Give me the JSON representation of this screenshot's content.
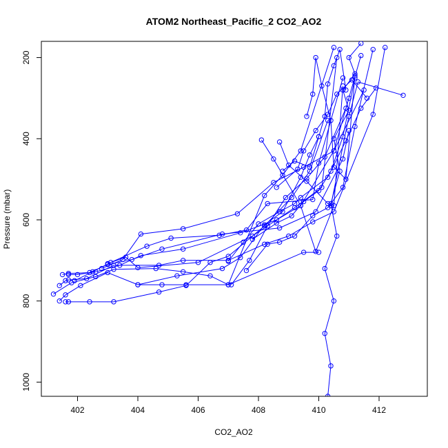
{
  "chart_data": {
    "type": "line",
    "title": "ATOM2 Northeast_Pacific_2 CO2_AO2",
    "xlabel": "CO2_AO2",
    "ylabel": "Pressure (mbar)",
    "xlim": [
      400.8,
      413.6
    ],
    "ylim": [
      1035,
      160
    ],
    "y_inverted": true,
    "xticks": [
      402,
      404,
      406,
      408,
      410,
      412
    ],
    "yticks": [
      200,
      400,
      600,
      800,
      1000
    ],
    "grid": false,
    "legend": "none",
    "line_color": "#0000ff",
    "marker": "open-circle",
    "series": [
      {
        "x": [
          410.3,
          410.4,
          410.2,
          410.5,
          410.2,
          410.6,
          410.4,
          410.7,
          410.5,
          411.0,
          410.8,
          411.2,
          411.0,
          411.4
        ],
        "y": [
          1035,
          960,
          880,
          800,
          720,
          640,
          560,
          480,
          400,
          330,
          280,
          240,
          200,
          165
        ]
      },
      {
        "x": [
          401.2,
          401.8,
          402.6,
          403.2,
          404.6,
          405.5,
          406.4,
          407.0,
          409.5,
          410.0
        ],
        "y": [
          783,
          755,
          740,
          722,
          720,
          728,
          738,
          760,
          680,
          680
        ]
      },
      {
        "x": [
          401.4,
          401.6,
          401.7,
          402.3,
          403.2,
          404.7,
          405.5,
          407.0,
          408.2,
          409.0,
          409.8,
          410.5,
          411.8,
          412.2
        ],
        "y": [
          762,
          750,
          748,
          745,
          712,
          712,
          700,
          700,
          660,
          640,
          605,
          580,
          340,
          175
        ]
      },
      {
        "x": [
          401.7,
          402.0,
          402.6,
          403.4,
          404.1,
          405.5,
          407.4,
          408.6,
          409.4,
          410.5,
          411.5
        ],
        "y": [
          735,
          735,
          728,
          712,
          688,
          672,
          632,
          600,
          565,
          430,
          280
        ]
      },
      {
        "x": [
          401.5,
          401.7,
          402.4,
          403.0,
          403.8,
          404.8,
          406.8,
          408.7,
          409.9,
          410.8,
          411.0
        ],
        "y": [
          735,
          732,
          730,
          710,
          698,
          672,
          635,
          620,
          580,
          450,
          380
        ]
      },
      {
        "x": [
          401.9,
          402.5,
          403.1,
          404.3,
          405.1,
          406.7,
          407.6,
          408.3,
          409.8,
          410.0,
          410.8
        ],
        "y": [
          750,
          728,
          705,
          665,
          645,
          638,
          625,
          560,
          550,
          460,
          250
        ]
      },
      {
        "x": [
          402.8,
          403.5,
          404.1,
          405.5,
          407.3,
          408.5,
          409.5,
          410.5,
          411.0
        ],
        "y": [
          720,
          698,
          635,
          622,
          585,
          508,
          470,
          430,
          300
        ]
      },
      {
        "x": [
          403.0,
          403.6,
          404.0,
          406.0,
          407.8,
          409.2,
          410.1,
          410.6
        ],
        "y": [
          708,
          692,
          718,
          705,
          640,
          570,
          520,
          200
        ]
      },
      {
        "x": [
          401.6,
          401.7,
          402.4,
          403.2,
          404.7,
          405.6,
          406.4,
          407.0,
          408.2,
          409.1,
          409.7,
          410.3
        ],
        "y": [
          802,
          802,
          802,
          802,
          778,
          762,
          705,
          690,
          615,
          545,
          480,
          355
        ]
      },
      {
        "x": [
          401.4,
          401.6,
          402.1,
          403.0,
          404.0,
          404.8,
          405.6,
          407.0,
          408.2,
          408.8,
          409.4,
          410.5
        ],
        "y": [
          800,
          785,
          762,
          730,
          760,
          760,
          760,
          760,
          540,
          490,
          430,
          175
        ]
      },
      {
        "x": [
          404.0,
          405.3,
          406.8,
          407.4,
          408.2,
          408.8,
          409.4,
          409.7,
          410.0
        ],
        "y": [
          760,
          738,
          720,
          693,
          612,
          580,
          495,
          440,
          395
        ]
      },
      {
        "x": [
          407.1,
          407.7,
          408.3,
          408.9,
          409.6,
          410.2,
          410.9,
          411.4
        ],
        "y": [
          760,
          700,
          615,
          545,
          498,
          445,
          325,
          195
        ]
      },
      {
        "x": [
          407.0,
          407.5,
          408.0,
          408.7,
          409.2,
          409.4,
          410.3,
          410.9,
          411.4,
          411.9
        ],
        "y": [
          702,
          655,
          610,
          580,
          560,
          545,
          495,
          405,
          325,
          275
        ]
      },
      {
        "x": [
          407.6,
          408.3,
          408.7,
          409.2,
          409.8,
          410.3,
          410.8,
          411.2,
          411.8
        ],
        "y": [
          725,
          660,
          655,
          640,
          590,
          570,
          520,
          370,
          180
        ]
      },
      {
        "x": [
          407.8,
          408.6,
          409.1,
          409.5,
          410.0,
          410.4,
          410.8,
          411.2
        ],
        "y": [
          648,
          608,
          590,
          555,
          528,
          480,
          395,
          250
        ]
      },
      {
        "x": [
          408.1,
          408.5,
          409.4,
          409.9,
          410.5,
          410.8
        ],
        "y": [
          403,
          450,
          565,
          678,
          565,
          270
        ]
      },
      {
        "x": [
          408.7,
          409.0,
          409.6,
          410.3,
          410.4,
          411.0,
          411.3,
          412.8
        ],
        "y": [
          408,
          465,
          505,
          560,
          565,
          345,
          260,
          293
        ]
      },
      {
        "x": [
          408.6,
          409.3,
          409.5,
          409.9,
          410.3,
          410.6,
          411.1,
          411.6
        ],
        "y": [
          520,
          475,
          430,
          380,
          340,
          290,
          255,
          300
        ]
      },
      {
        "x": [
          409.6,
          409.8,
          409.9,
          410.1,
          410.4,
          410.5,
          410.9,
          411.2
        ],
        "y": [
          345,
          290,
          200,
          270,
          355,
          470,
          500,
          245
        ]
      },
      {
        "x": [
          408.8,
          409.2,
          409.7,
          410.0,
          410.2,
          410.3,
          410.5,
          410.7,
          410.9
        ],
        "y": [
          480,
          455,
          470,
          395,
          345,
          265,
          220,
          180,
          280
        ]
      }
    ]
  }
}
